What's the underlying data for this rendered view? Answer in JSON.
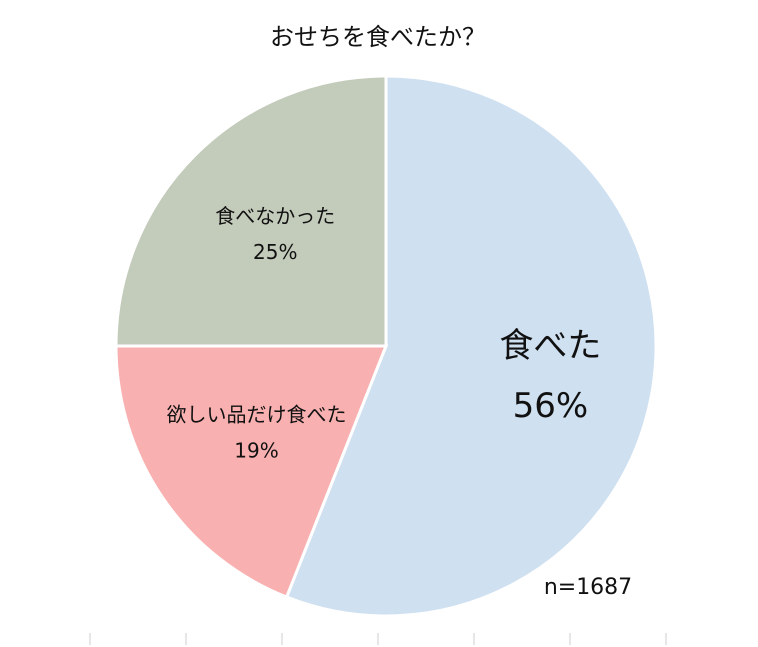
{
  "chart_data": {
    "type": "pie",
    "title": "おせちを食べたか？",
    "categories": [
      "食べた",
      "欲しい品だけ食べた",
      "食べなかった"
    ],
    "values": [
      56,
      19,
      25
    ],
    "value_labels": [
      "56%",
      "19%",
      "25%"
    ],
    "colors": [
      "#cfe0f1",
      "#f9b0b0",
      "#c3cbbb"
    ],
    "annotation": "n=1687"
  }
}
